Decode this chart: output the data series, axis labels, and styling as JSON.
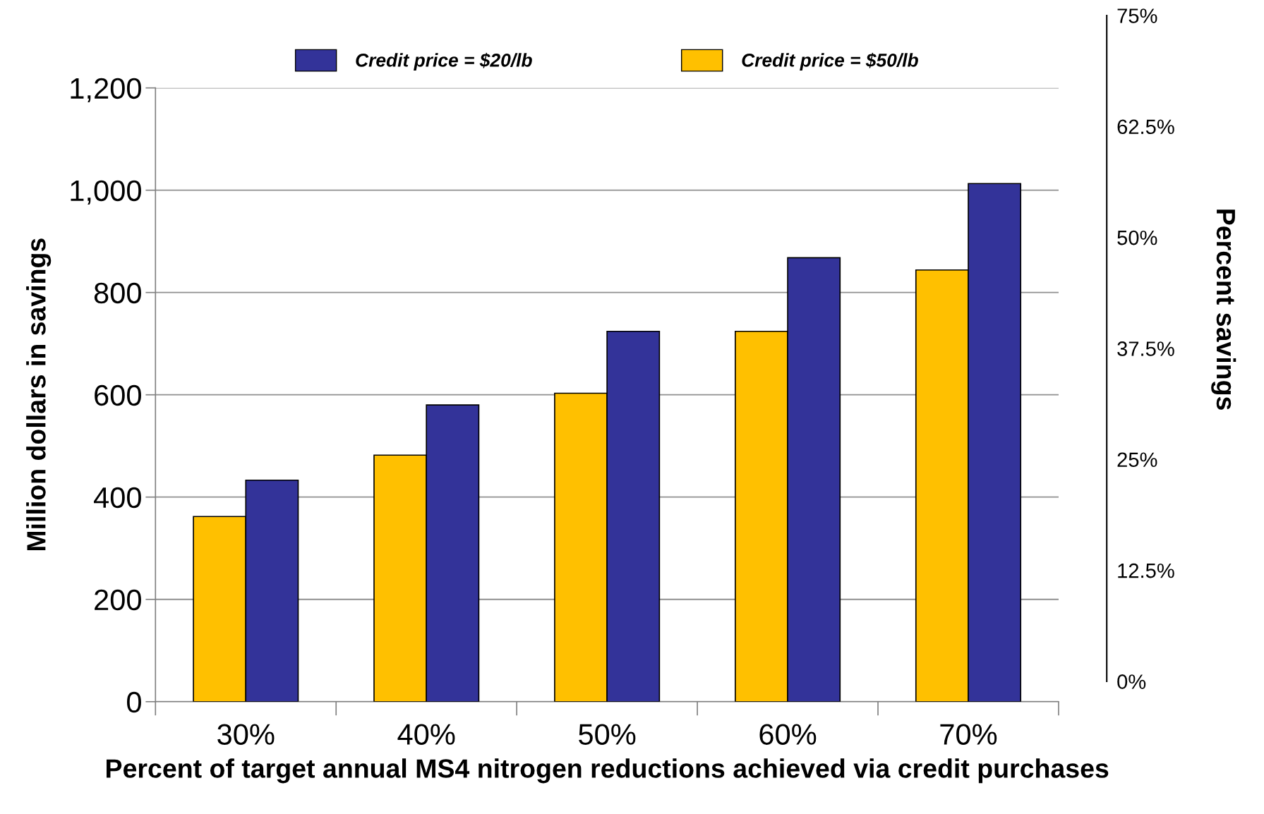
{
  "chart_data": {
    "type": "bar",
    "xlabel": "Percent of target annual MS4 nitrogen reductions achieved via credit purchases",
    "ylabel": "Million dollars in savings",
    "y2label": "Percent savings",
    "categories": [
      "30%",
      "40%",
      "50%",
      "60%",
      "70%"
    ],
    "series": [
      {
        "name": "Credit price = $50/lb",
        "color": "#ffc000",
        "values": [
          362,
          482,
          603,
          724,
          844
        ]
      },
      {
        "name": "Credit price = $20/lb",
        "color": "#333399",
        "values": [
          433,
          580,
          724,
          868,
          1013
        ]
      }
    ],
    "ylim": [
      0,
      1200
    ],
    "yticks": [
      {
        "value": 0,
        "label": "0"
      },
      {
        "value": 200,
        "label": "200"
      },
      {
        "value": 400,
        "label": "400"
      },
      {
        "value": 600,
        "label": "600"
      },
      {
        "value": 800,
        "label": "800"
      },
      {
        "value": 1000,
        "label": "1,000"
      },
      {
        "value": 1200,
        "label": "1,200"
      }
    ],
    "y2lim": [
      0,
      75
    ],
    "y2ticks": [
      {
        "value": 0,
        "label": "0%"
      },
      {
        "value": 12.5,
        "label": "12.5%"
      },
      {
        "value": 25,
        "label": "25%"
      },
      {
        "value": 37.5,
        "label": "37.5%"
      },
      {
        "value": 50,
        "label": "50%"
      },
      {
        "value": 62.5,
        "label": "62.5%"
      },
      {
        "value": 75,
        "label": "75%"
      }
    ],
    "grid": "y",
    "legend": "top"
  }
}
